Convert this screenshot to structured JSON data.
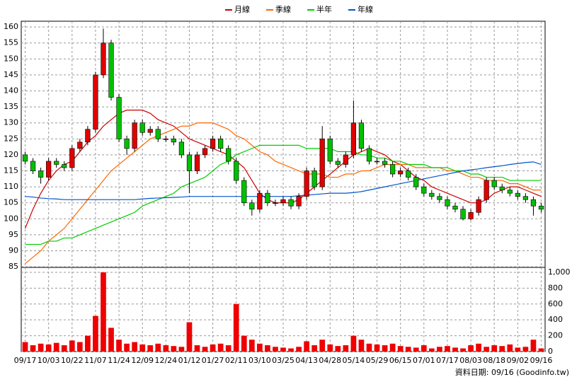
{
  "chart_data": {
    "type": "candlestick",
    "footer": "資料日期: 09/16 (Goodinfo.tw)",
    "categories": [
      "09/17",
      null,
      null,
      "10/03",
      null,
      null,
      "10/22",
      null,
      null,
      "11/07",
      null,
      null,
      "11/24",
      null,
      null,
      "12/09",
      null,
      null,
      "12/24",
      null,
      null,
      "01/12",
      null,
      null,
      "01/27",
      null,
      null,
      "02/11",
      null,
      null,
      "03/10",
      null,
      null,
      "03/25",
      null,
      null,
      "04/13",
      null,
      null,
      "04/28",
      null,
      null,
      "05/14",
      null,
      null,
      "05/29",
      null,
      null,
      "06/15",
      null,
      null,
      "07/01",
      null,
      null,
      "07/17",
      null,
      null,
      "08/03",
      null,
      null,
      "08/18",
      null,
      null,
      "09/02",
      null,
      null,
      "09/16"
    ],
    "open": [
      120,
      118,
      115,
      113,
      118,
      117,
      116,
      122,
      124,
      128,
      145,
      155,
      138,
      125,
      122,
      130,
      127,
      128,
      125,
      125,
      124,
      120,
      115,
      120,
      122,
      125,
      122,
      118,
      112,
      105,
      103,
      108,
      105,
      105,
      106,
      104,
      107,
      115,
      110,
      125,
      118,
      117,
      120,
      130,
      122,
      118,
      118,
      117,
      114,
      115,
      113,
      110,
      108,
      107,
      106,
      104,
      103,
      100,
      102,
      106,
      112,
      110,
      109,
      108,
      107,
      106,
      104
    ],
    "high": [
      121,
      119,
      116,
      119,
      119,
      118,
      123,
      125,
      129,
      146,
      159.5,
      156,
      139,
      126,
      131,
      131,
      129,
      129,
      126,
      126,
      125,
      121,
      121,
      123,
      126,
      126,
      123,
      119,
      113,
      106,
      109,
      109,
      106,
      107,
      107,
      108,
      116,
      116,
      129,
      126,
      119,
      121,
      137,
      131,
      123,
      119,
      119,
      118,
      116,
      116,
      114,
      111,
      109,
      108,
      107,
      105,
      104,
      103,
      107,
      113,
      113,
      111,
      110,
      109,
      108,
      107,
      105
    ],
    "low": [
      117,
      114,
      111,
      112,
      116,
      115,
      115,
      121,
      123,
      127,
      144,
      137,
      124,
      120,
      121,
      126,
      126,
      124,
      124,
      123,
      119,
      108,
      114,
      119,
      121,
      121,
      117,
      111,
      104,
      101,
      102,
      104,
      104,
      104,
      103,
      103,
      106,
      109,
      109,
      117,
      116,
      116,
      119,
      121,
      117,
      117,
      116,
      113,
      113,
      112,
      109,
      107,
      106,
      105,
      103,
      102,
      99.5,
      99.5,
      101,
      105,
      109,
      108,
      107,
      106,
      105,
      101,
      102
    ],
    "close": [
      118,
      115,
      113,
      118,
      117,
      116,
      122,
      124,
      128,
      145,
      155,
      138,
      125,
      122,
      130,
      127,
      128,
      125,
      125,
      124,
      120,
      115,
      120,
      122,
      125,
      122,
      118,
      112,
      105,
      103,
      108,
      105,
      105,
      106,
      104,
      107,
      115,
      110,
      125,
      118,
      117,
      120,
      130,
      122,
      118,
      118,
      117,
      114,
      115,
      113,
      110,
      108,
      107,
      106,
      104,
      103,
      100,
      102,
      106,
      112,
      110,
      109,
      108,
      107,
      106,
      104,
      103
    ],
    "up_color": "#e00000",
    "down_color": "#00c000",
    "series": [
      {
        "name": "月線",
        "color": "#cc0000",
        "values": [
          97,
          103,
          108,
          112,
          115,
          117,
          118,
          121,
          124,
          126,
          129,
          131,
          133,
          134,
          134,
          134,
          133,
          131,
          130,
          129,
          127,
          125,
          124,
          123,
          122,
          121,
          120,
          118,
          116,
          112,
          108,
          106,
          105,
          105,
          105,
          106,
          108,
          110,
          112,
          114,
          116,
          118,
          120,
          121,
          122,
          121,
          120,
          118,
          117,
          115,
          113,
          112,
          110,
          109,
          108,
          107,
          106,
          105,
          105,
          106,
          108,
          109,
          110,
          110,
          109,
          108,
          107
        ]
      },
      {
        "name": "季線",
        "color": "#ff6600",
        "values": [
          86,
          88,
          90,
          93,
          95,
          97,
          100,
          103,
          106,
          109,
          112,
          115,
          117,
          119,
          121,
          123,
          125,
          126,
          127,
          128,
          129,
          129,
          130,
          130,
          130,
          129,
          128,
          126,
          125,
          123,
          121,
          120,
          118,
          117,
          116,
          115,
          114,
          114,
          114,
          113,
          113,
          114,
          114,
          115,
          115,
          116,
          117,
          117,
          117,
          117,
          116,
          116,
          116,
          116,
          115,
          115,
          114,
          113,
          113,
          112,
          112,
          112,
          111,
          111,
          110,
          109,
          109
        ]
      },
      {
        "name": "半年",
        "color": "#00cc00",
        "values": [
          92,
          92,
          92,
          93,
          93,
          94,
          94,
          95,
          96,
          97,
          98,
          99,
          100,
          101,
          102,
          104,
          105,
          106,
          107,
          108,
          110,
          111,
          112,
          113,
          115,
          117,
          118,
          120,
          121,
          122,
          123,
          123,
          123,
          123,
          123,
          123,
          122,
          122,
          122,
          122,
          121,
          121,
          121,
          120,
          120,
          119,
          119,
          118,
          118,
          117,
          117,
          117,
          116,
          116,
          116,
          115,
          115,
          114,
          114,
          113,
          113,
          113,
          112,
          112,
          112,
          112,
          112
        ]
      },
      {
        "name": "年線",
        "color": "#0055cc",
        "values": [
          107,
          106.8,
          106.5,
          106.3,
          106.2,
          106,
          106,
          106,
          106,
          106,
          106,
          106,
          106,
          106,
          106,
          106.2,
          106.4,
          106.5,
          106.6,
          106.7,
          106.8,
          107,
          107,
          107,
          107,
          107,
          107,
          107,
          107,
          107,
          107,
          107,
          107,
          107,
          107,
          107.2,
          107.4,
          107.6,
          107.8,
          108,
          108,
          108,
          108.2,
          108.5,
          109,
          109.5,
          110,
          110.5,
          111,
          111.5,
          112,
          112.5,
          113,
          113.5,
          114,
          114.5,
          115,
          115.3,
          115.6,
          116,
          116.3,
          116.6,
          117,
          117.3,
          117.6,
          117.8,
          117
        ]
      }
    ],
    "ylim": [
      84.8,
      161.8
    ],
    "yticks": [
      85,
      90,
      95,
      100,
      105,
      110,
      115,
      120,
      125,
      130,
      135,
      140,
      145,
      150,
      155,
      160
    ],
    "volume": [
      120,
      80,
      100,
      90,
      110,
      80,
      140,
      120,
      200,
      450,
      1000,
      300,
      150,
      100,
      120,
      90,
      80,
      100,
      80,
      70,
      60,
      370,
      80,
      60,
      90,
      100,
      80,
      600,
      200,
      150,
      100,
      80,
      60,
      50,
      40,
      60,
      130,
      80,
      150,
      90,
      70,
      80,
      200,
      150,
      100,
      90,
      80,
      100,
      70,
      60,
      50,
      80,
      40,
      60,
      70,
      50,
      40,
      80,
      100,
      60,
      80,
      70,
      90,
      50,
      60,
      150,
      40
    ],
    "volume_color": "#ee0000",
    "y2lim": [
      0,
      1062
    ],
    "y2ticks": [
      0,
      200,
      400,
      600,
      800,
      {
        "value": 1000,
        "label": "1,000"
      }
    ],
    "grid": true
  }
}
